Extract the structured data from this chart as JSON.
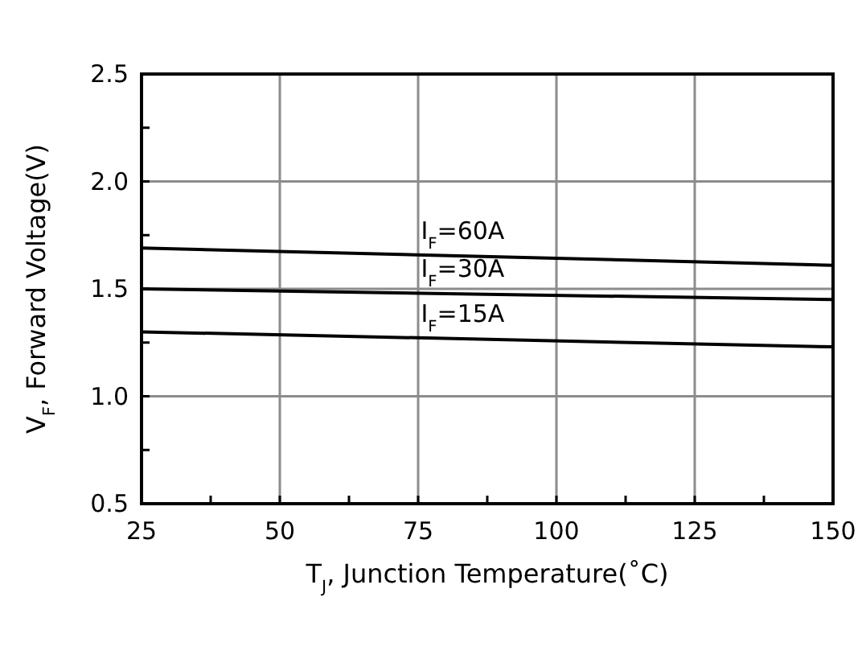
{
  "chart_data": {
    "type": "line",
    "xlabel": "T$_{J}$, Junction Temperature(˚C)",
    "ylabel": "V$_{F}$, Forward Voltage(V)",
    "x": [
      25,
      150
    ],
    "series": [
      {
        "name": "I$_{F}$=60A",
        "color": "#000000",
        "values": [
          1.69,
          1.61
        ]
      },
      {
        "name": "I$_{F}$=30A",
        "color": "#000000",
        "values": [
          1.5,
          1.45
        ]
      },
      {
        "name": "I$_{F}$=15A",
        "color": "#000000",
        "values": [
          1.3,
          1.23
        ]
      }
    ],
    "xlim": [
      25,
      150
    ],
    "xticks": [
      25,
      {
        "value": 37.5,
        "label": null
      },
      50,
      {
        "value": 62.5,
        "label": null
      },
      75,
      {
        "value": 87.5,
        "label": null
      },
      100,
      {
        "value": 112.5,
        "label": null
      },
      125,
      {
        "value": 137.5,
        "label": null
      },
      150
    ],
    "ylim": [
      0.5,
      2.5
    ],
    "yticks": [
      {
        "value": 0.5,
        "label": "0.5"
      },
      {
        "value": 0.75,
        "label": null
      },
      {
        "value": 1.0,
        "label": "1.0"
      },
      {
        "value": 1.25,
        "label": null
      },
      {
        "value": 1.5,
        "label": "1.5"
      },
      {
        "value": 1.75,
        "label": null
      },
      {
        "value": 2.0,
        "label": "2.0"
      },
      {
        "value": 2.25,
        "label": null
      },
      {
        "value": 2.5,
        "label": "2.5"
      }
    ],
    "grid": true,
    "line_style": "solid",
    "marker": "none"
  }
}
